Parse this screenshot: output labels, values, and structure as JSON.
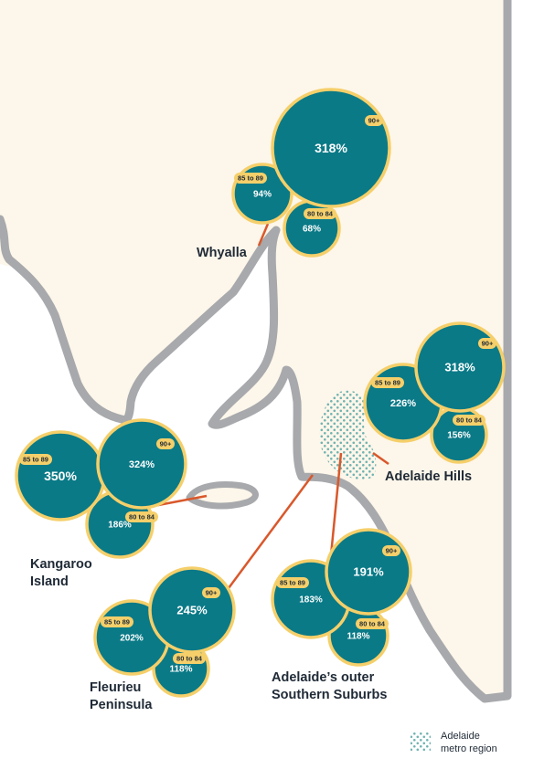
{
  "colors": {
    "land": "#fdf6ea",
    "coast": "#a7a9ac",
    "bubble_fill": "#0a7a87",
    "bubble_stroke": "#f5cf6a",
    "connector": "#d9582b",
    "metro_dots": "#6fb3b0",
    "text": "#1f2a36"
  },
  "regions": [
    {
      "name": "Whyalla",
      "name_lines": [
        "Whyalla"
      ],
      "bubbles": [
        {
          "age": "90+",
          "value": "318%"
        },
        {
          "age": "85 to 89",
          "value": "94%"
        },
        {
          "age": "80 to 84",
          "value": "68%"
        }
      ]
    },
    {
      "name": "Adelaide Hills",
      "name_lines": [
        "Adelaide Hills"
      ],
      "bubbles": [
        {
          "age": "90+",
          "value": "318%"
        },
        {
          "age": "85 to 89",
          "value": "226%"
        },
        {
          "age": "80 to 84",
          "value": "156%"
        }
      ]
    },
    {
      "name": "Kangaroo Island",
      "name_lines": [
        "Kangaroo",
        "Island"
      ],
      "bubbles": [
        {
          "age": "90+",
          "value": "324%"
        },
        {
          "age": "85 to 89",
          "value": "350%"
        },
        {
          "age": "80 to 84",
          "value": "186%"
        }
      ]
    },
    {
      "name": "Fleurieu Peninsula",
      "name_lines": [
        "Fleurieu",
        "Peninsula"
      ],
      "bubbles": [
        {
          "age": "90+",
          "value": "245%"
        },
        {
          "age": "85 to 89",
          "value": "202%"
        },
        {
          "age": "80 to 84",
          "value": "118%"
        }
      ]
    },
    {
      "name": "Adelaide's outer Southern Suburbs",
      "name_lines": [
        "Adelaide’s outer",
        "Southern Suburbs"
      ],
      "bubbles": [
        {
          "age": "90+",
          "value": "191%"
        },
        {
          "age": "85 to 89",
          "value": "183%"
        },
        {
          "age": "80 to 84",
          "value": "118%"
        }
      ]
    }
  ],
  "legend": {
    "lines": [
      "Adelaide",
      "metro region"
    ]
  }
}
